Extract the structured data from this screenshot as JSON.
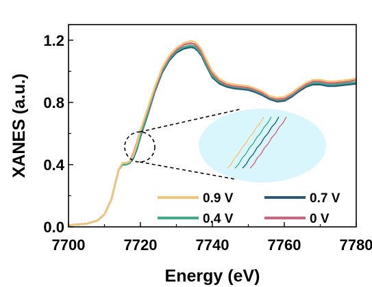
{
  "chart_data": {
    "type": "line",
    "title": "",
    "xlabel": "Energy (eV)",
    "ylabel": "XANES (a.u.)",
    "xlim": [
      7700,
      7780
    ],
    "ylim": [
      0.0,
      1.3
    ],
    "xticks": [
      7700,
      7720,
      7740,
      7760,
      7780
    ],
    "xtick_labels": [
      "7700",
      "7720",
      "7740",
      "7760",
      "7780"
    ],
    "yticks": [
      0.0,
      0.4,
      0.8,
      1.2
    ],
    "ytick_labels": [
      "0.0",
      "0.4",
      "0.8",
      "1.2"
    ],
    "grid": false,
    "legend_position": "bottom-right",
    "x": [
      7700,
      7705,
      7708,
      7710,
      7712,
      7713,
      7714,
      7715,
      7716,
      7717,
      7718,
      7719,
      7720,
      7722,
      7724,
      7726,
      7728,
      7730,
      7732,
      7734,
      7735,
      7736,
      7737,
      7738,
      7740,
      7742,
      7744,
      7746,
      7748,
      7750,
      7752,
      7754,
      7756,
      7758,
      7760,
      7762,
      7764,
      7766,
      7768,
      7770,
      7772,
      7774,
      7776,
      7778,
      7780
    ],
    "series": [
      {
        "name": "0.9 V",
        "color": "#F2C67A",
        "values": [
          0.01,
          0.02,
          0.04,
          0.08,
          0.18,
          0.28,
          0.37,
          0.41,
          0.41,
          0.42,
          0.46,
          0.53,
          0.62,
          0.76,
          0.9,
          1.02,
          1.1,
          1.15,
          1.18,
          1.195,
          1.19,
          1.17,
          1.14,
          1.09,
          1.0,
          0.95,
          0.925,
          0.915,
          0.91,
          0.905,
          0.89,
          0.87,
          0.84,
          0.83,
          0.835,
          0.86,
          0.895,
          0.925,
          0.945,
          0.945,
          0.935,
          0.935,
          0.94,
          0.945,
          0.955
        ]
      },
      {
        "name": "0.7 V",
        "color": "#2A5A78",
        "values": [
          0.01,
          0.02,
          0.04,
          0.08,
          0.18,
          0.28,
          0.37,
          0.4,
          0.4,
          0.41,
          0.44,
          0.5,
          0.58,
          0.72,
          0.87,
          0.99,
          1.07,
          1.12,
          1.145,
          1.155,
          1.15,
          1.13,
          1.1,
          1.05,
          0.96,
          0.92,
          0.9,
          0.89,
          0.885,
          0.88,
          0.865,
          0.845,
          0.82,
          0.805,
          0.81,
          0.835,
          0.87,
          0.9,
          0.915,
          0.915,
          0.905,
          0.905,
          0.91,
          0.915,
          0.92
        ]
      },
      {
        "name": "0.4 V",
        "color": "#3BAE8A",
        "values": [
          0.01,
          0.02,
          0.04,
          0.08,
          0.18,
          0.28,
          0.37,
          0.4,
          0.4,
          0.41,
          0.45,
          0.51,
          0.59,
          0.73,
          0.88,
          1.0,
          1.08,
          1.13,
          1.155,
          1.165,
          1.16,
          1.14,
          1.11,
          1.06,
          0.97,
          0.93,
          0.91,
          0.9,
          0.895,
          0.89,
          0.875,
          0.855,
          0.83,
          0.815,
          0.82,
          0.845,
          0.88,
          0.91,
          0.925,
          0.925,
          0.915,
          0.915,
          0.92,
          0.925,
          0.93
        ]
      },
      {
        "name": "0 V",
        "color": "#D4627A",
        "values": [
          0.01,
          0.02,
          0.04,
          0.08,
          0.18,
          0.28,
          0.37,
          0.41,
          0.41,
          0.42,
          0.47,
          0.54,
          0.62,
          0.75,
          0.89,
          1.01,
          1.09,
          1.14,
          1.17,
          1.18,
          1.175,
          1.155,
          1.125,
          1.075,
          0.985,
          0.94,
          0.915,
          0.905,
          0.9,
          0.895,
          0.88,
          0.86,
          0.835,
          0.82,
          0.825,
          0.85,
          0.885,
          0.915,
          0.935,
          0.935,
          0.925,
          0.925,
          0.93,
          0.935,
          0.945
        ]
      }
    ],
    "inset": {
      "shape": "ellipse",
      "fill": "#D8F6FC",
      "marker": "dashed-circle",
      "marker_center": [
        7719,
        0.52
      ],
      "series_order": [
        "0.9 V",
        "0.4 V",
        "0.7 V",
        "0 V"
      ]
    }
  }
}
